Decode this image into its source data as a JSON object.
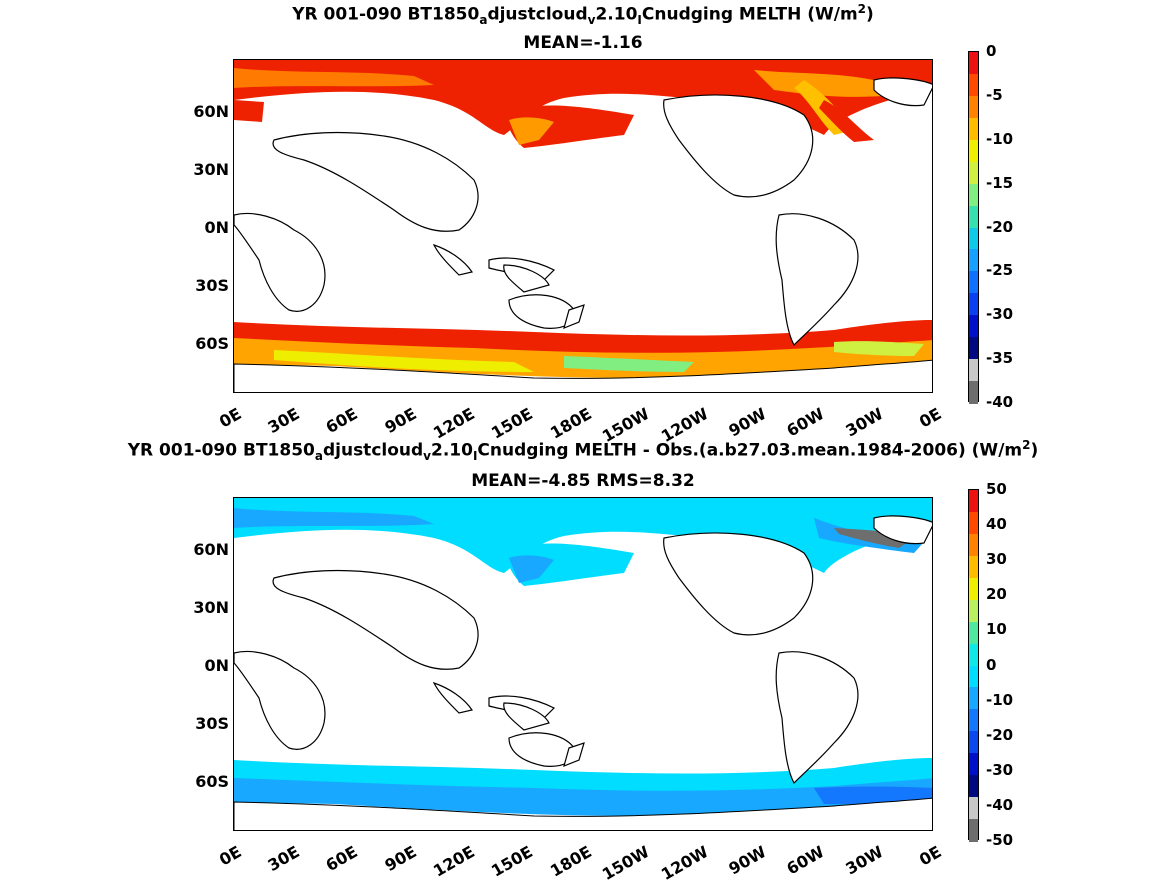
{
  "panel1": {
    "title_a": "YR 001-090 BT1850",
    "title_sub1": "a",
    "title_b": "djustcloud",
    "title_sub2": "v",
    "title_c": "2.10",
    "title_sub3": "I",
    "title_d": "Cnudging  MELTH (W/m",
    "title_sup": "2",
    "title_e": ")",
    "stats": "MEAN=-1.16",
    "colorbar": {
      "ticks": [
        "0",
        "-5",
        "-10",
        "-15",
        "-20",
        "-25",
        "-30",
        "-35",
        "-40"
      ],
      "colors": [
        "#ee1111",
        "#ff4a00",
        "#ff8200",
        "#ffbb00",
        "#eeee00",
        "#cff040",
        "#80ee80",
        "#38e0b0",
        "#10c8e8",
        "#18a0ff",
        "#1070ff",
        "#0a40f0",
        "#0010c8",
        "#000a80",
        "#c8c8c8",
        "#6e6e6e"
      ]
    }
  },
  "panel2": {
    "title_a": "YR 001-090 BT1850",
    "title_sub1": "a",
    "title_b": "djustcloud",
    "title_sub2": "v",
    "title_c": "2.10",
    "title_sub3": "I",
    "title_d": "Cnudging MELTH - Obs.(a.b27.03.mean.1984-2006) (W/m",
    "title_sup": "2",
    "title_e": ")",
    "stats": "MEAN=-4.85 RMS=8.32",
    "colorbar": {
      "ticks": [
        "50",
        "40",
        "30",
        "20",
        "10",
        "0",
        "-10",
        "-20",
        "-30",
        "-40",
        "-50"
      ],
      "colors": [
        "#ee1111",
        "#ff4a00",
        "#ff8200",
        "#ffbb00",
        "#eeee00",
        "#b8f060",
        "#50e8a0",
        "#10e8e8",
        "#00ddff",
        "#18a8ff",
        "#1478ff",
        "#0a48f0",
        "#0010c8",
        "#000a80",
        "#c8c8c8",
        "#6e6e6e"
      ]
    }
  },
  "lat_labels": [
    "60N",
    "30N",
    "0N",
    "30S",
    "60S"
  ],
  "lon_labels": [
    "0E",
    "30E",
    "60E",
    "90E",
    "120E",
    "150E",
    "180E",
    "150W",
    "120W",
    "90W",
    "60W",
    "30W",
    "0E"
  ]
}
